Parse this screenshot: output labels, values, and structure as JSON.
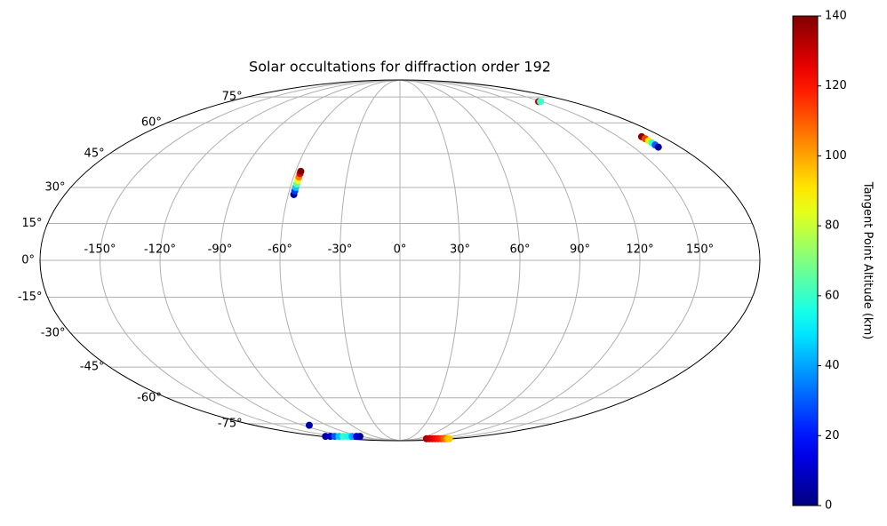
{
  "chart_data": {
    "type": "scatter",
    "projection": "mollweide",
    "title": "Solar occultations for diffraction order 192",
    "x": [
      -57,
      -57,
      -57,
      -57,
      -57,
      -57,
      -57,
      -57,
      146,
      148,
      166,
      166,
      166,
      166,
      166,
      166,
      -112,
      -171,
      -160,
      -150,
      -140,
      -130,
      -120,
      -110,
      -100,
      -92,
      90,
      100,
      110,
      120,
      130,
      140,
      150,
      160,
      167
    ],
    "values": [
      27,
      28.5,
      30,
      31.5,
      33,
      34.5,
      36,
      37,
      72,
      72,
      53,
      52,
      51,
      50,
      49,
      48,
      -76,
      -84.6,
      -84.6,
      -84.6,
      -84.6,
      -84.6,
      -84.6,
      -84.6,
      -84.6,
      -84.6,
      -87,
      -87,
      -87,
      -87,
      -87,
      -87,
      -87,
      -87,
      -87
    ],
    "altitude": [
      5,
      25,
      45,
      65,
      85,
      105,
      125,
      140,
      130,
      60,
      140,
      115,
      90,
      60,
      30,
      5,
      5,
      5,
      10,
      30,
      45,
      60,
      55,
      40,
      15,
      5,
      135,
      132,
      128,
      124,
      120,
      116,
      110,
      100,
      95
    ],
    "colormap": "jet",
    "xlim": [
      -180,
      180
    ],
    "ylim": [
      -90,
      90
    ],
    "xticks": [
      {
        "value": -150,
        "label": "-150°"
      },
      {
        "value": -120,
        "label": "-120°"
      },
      {
        "value": -90,
        "label": "-90°"
      },
      {
        "value": -60,
        "label": "-60°"
      },
      {
        "value": -30,
        "label": "-30°"
      },
      {
        "value": 0,
        "label": "0°"
      },
      {
        "value": 30,
        "label": "30°"
      },
      {
        "value": 60,
        "label": "60°"
      },
      {
        "value": 90,
        "label": "90°"
      },
      {
        "value": 120,
        "label": "120°"
      },
      {
        "value": 150,
        "label": "150°"
      }
    ],
    "yticks": [
      {
        "value": -75,
        "label": "-75°"
      },
      {
        "value": -60,
        "label": "-60°"
      },
      {
        "value": -45,
        "label": "-45°"
      },
      {
        "value": -30,
        "label": "-30°"
      },
      {
        "value": -15,
        "label": "-15°"
      },
      {
        "value": 0,
        "label": "0°"
      },
      {
        "value": 15,
        "label": "15°"
      },
      {
        "value": 30,
        "label": "30°"
      },
      {
        "value": 45,
        "label": "45°"
      },
      {
        "value": 60,
        "label": "60°"
      },
      {
        "value": 75,
        "label": "75°"
      }
    ],
    "grid": true,
    "colorbar_label": "Tangent Point Altitude (km)",
    "clim": [
      0,
      140
    ],
    "cticks": [
      0,
      20,
      40,
      60,
      80,
      100,
      120,
      140
    ]
  }
}
